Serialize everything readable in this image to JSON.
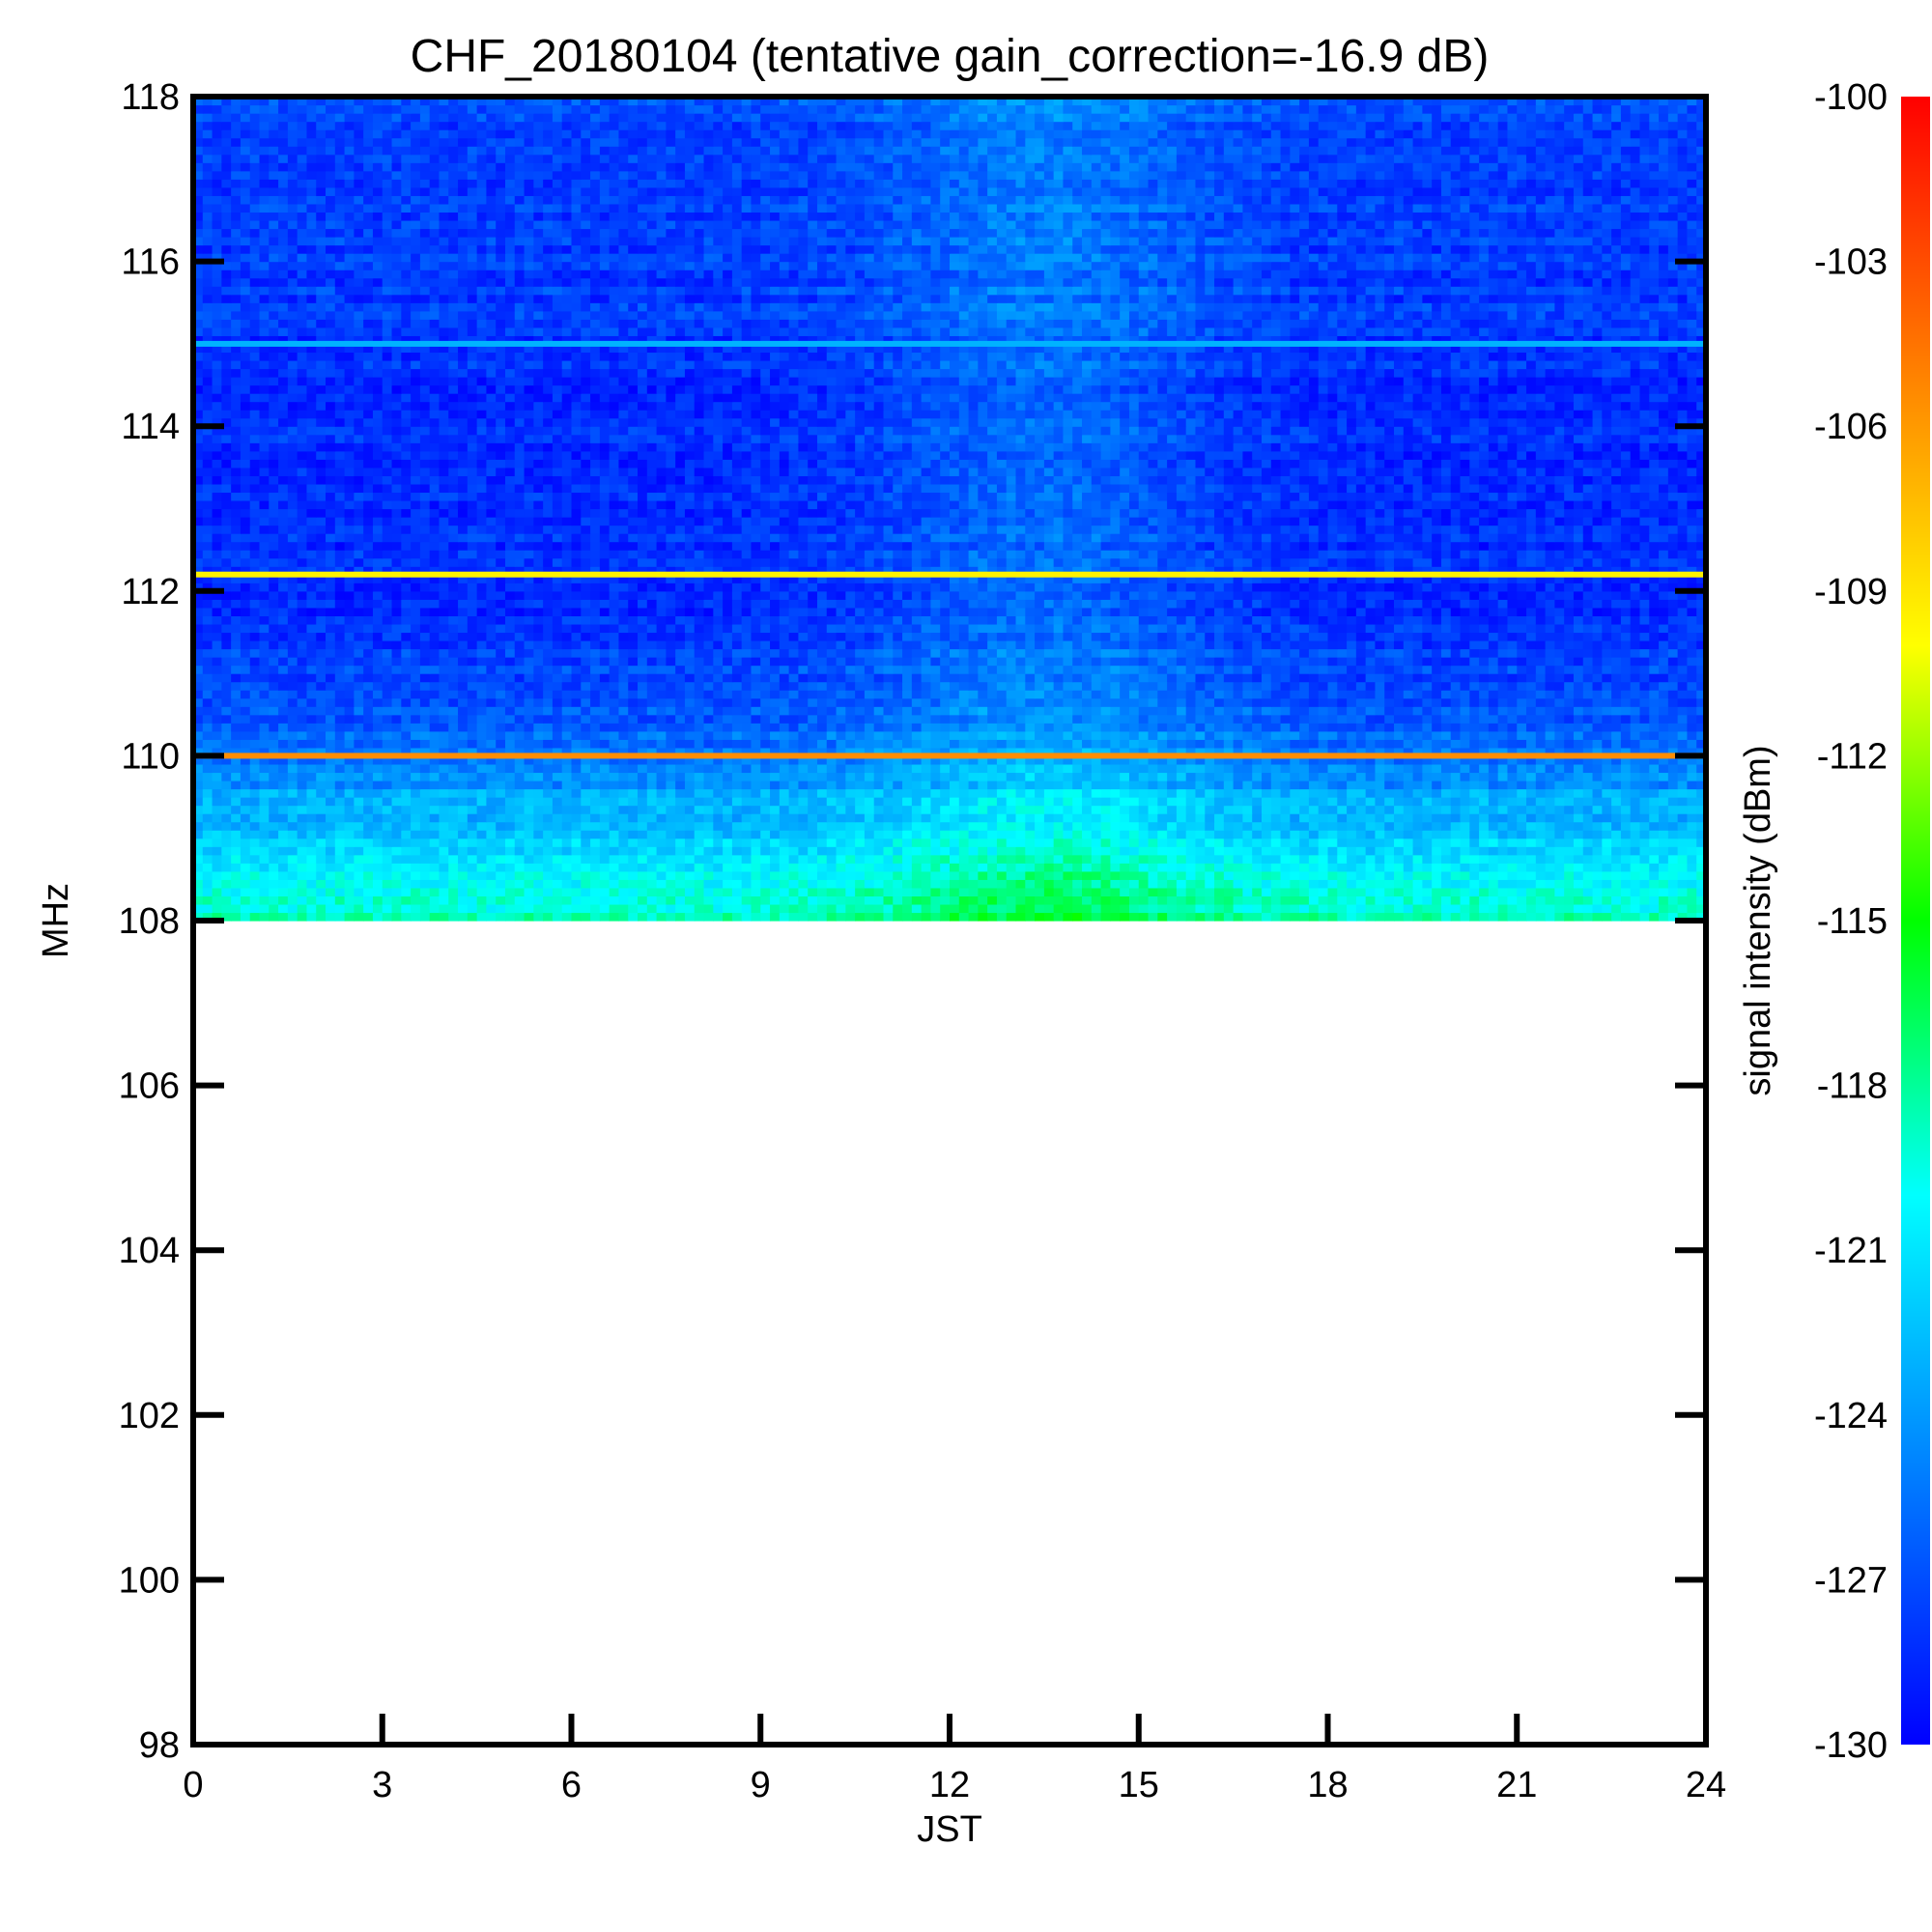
{
  "chart_data": {
    "type": "heatmap",
    "title": "CHF_20180104 (tentative gain_correction=-16.9 dB)",
    "xlabel": "JST",
    "ylabel": "MHz",
    "xlim": [
      0,
      24
    ],
    "ylim": [
      98,
      118
    ],
    "x_ticks": [
      0,
      3,
      6,
      9,
      12,
      15,
      18,
      21,
      24
    ],
    "y_ticks": [
      98,
      100,
      102,
      104,
      106,
      108,
      110,
      112,
      114,
      116,
      118
    ],
    "data_frequency_range_mhz": [
      108,
      118
    ],
    "no_data_frequency_range_mhz": [
      98,
      108
    ],
    "colorbar": {
      "label": "signal intensity (dBm)",
      "range": [
        -130,
        -100
      ],
      "ticks": [
        -100,
        -103,
        -106,
        -109,
        -112,
        -115,
        -118,
        -121,
        -124,
        -127,
        -130
      ],
      "colormap": [
        "#0000ff",
        "#0080ff",
        "#00ffff",
        "#00ff00",
        "#ffff00",
        "#ff8000",
        "#ff0000"
      ]
    },
    "background_profile": [
      {
        "freq_mhz": 108.0,
        "dbm": -118.5
      },
      {
        "freq_mhz": 108.5,
        "dbm": -120.5
      },
      {
        "freq_mhz": 109.0,
        "dbm": -122.0
      },
      {
        "freq_mhz": 109.5,
        "dbm": -123.5
      },
      {
        "freq_mhz": 109.8,
        "dbm": -125.0
      },
      {
        "freq_mhz": 110.5,
        "dbm": -126.5
      },
      {
        "freq_mhz": 111.5,
        "dbm": -128.0
      },
      {
        "freq_mhz": 113.0,
        "dbm": -128.3
      },
      {
        "freq_mhz": 114.5,
        "dbm": -128.2
      },
      {
        "freq_mhz": 116.0,
        "dbm": -127.6
      },
      {
        "freq_mhz": 118.0,
        "dbm": -127.2
      }
    ],
    "daytime_enhancement": {
      "center_jst": 13.5,
      "width_hours": 2.6,
      "peak_db": 2.5
    },
    "strong_lines": [
      {
        "freq_mhz": 110.0,
        "dbm": -105.5
      },
      {
        "freq_mhz": 112.2,
        "dbm": -109.5
      },
      {
        "freq_mhz": 115.0,
        "dbm": -123.0
      }
    ]
  }
}
